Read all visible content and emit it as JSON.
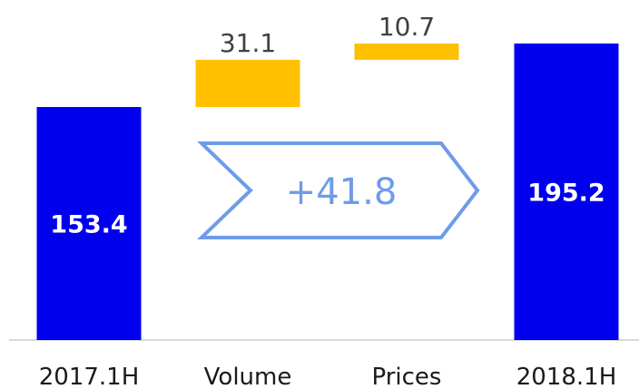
{
  "chart_data": {
    "type": "waterfall",
    "categories": [
      "2017.1H",
      "Volume",
      "Prices",
      "2018.1H"
    ],
    "values": [
      153.4,
      31.1,
      10.7,
      195.2
    ],
    "kinds": [
      "total",
      "increase",
      "increase",
      "total"
    ],
    "value_labels": [
      "153.4",
      "31.1",
      "10.7",
      "195.2"
    ],
    "change_total": "+41.8",
    "ylim": [
      0,
      195.2
    ],
    "grid": false,
    "legend": "none",
    "colors": {
      "total": "#0000ee",
      "increase": "#ffc000",
      "arrow": "#6f9bea",
      "baseline": "#d9d9d9"
    }
  }
}
